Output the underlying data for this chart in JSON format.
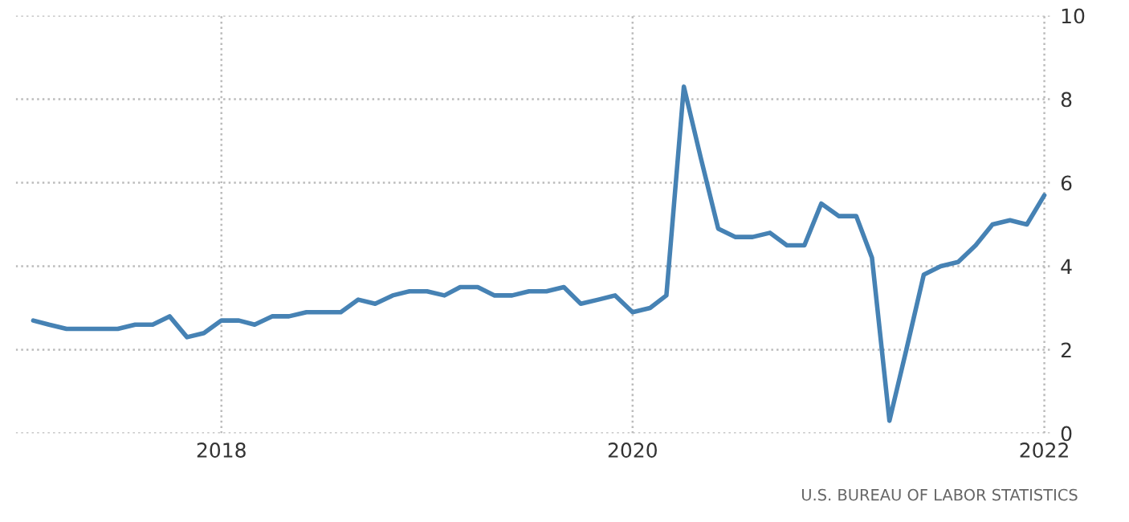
{
  "chart_data": {
    "type": "line",
    "x": [
      "2017-02",
      "2017-03",
      "2017-04",
      "2017-05",
      "2017-06",
      "2017-07",
      "2017-08",
      "2017-09",
      "2017-10",
      "2017-11",
      "2017-12",
      "2018-01",
      "2018-02",
      "2018-03",
      "2018-04",
      "2018-05",
      "2018-06",
      "2018-07",
      "2018-08",
      "2018-09",
      "2018-10",
      "2018-11",
      "2018-12",
      "2019-01",
      "2019-02",
      "2019-03",
      "2019-04",
      "2019-05",
      "2019-06",
      "2019-07",
      "2019-08",
      "2019-09",
      "2019-10",
      "2019-11",
      "2019-12",
      "2020-01",
      "2020-02",
      "2020-03",
      "2020-04",
      "2020-05",
      "2020-06",
      "2020-07",
      "2020-08",
      "2020-09",
      "2020-10",
      "2020-11",
      "2020-12",
      "2021-01",
      "2021-02",
      "2021-03",
      "2021-04",
      "2021-05",
      "2021-06",
      "2021-07",
      "2021-08",
      "2021-09",
      "2021-10",
      "2021-11",
      "2021-12",
      "2022-01"
    ],
    "series": [
      {
        "color": "#4682b4",
        "values": [
          2.7,
          2.6,
          2.5,
          2.5,
          2.5,
          2.5,
          2.6,
          2.6,
          2.8,
          2.3,
          2.4,
          2.7,
          2.7,
          2.6,
          2.8,
          2.8,
          2.9,
          2.9,
          2.9,
          3.2,
          3.1,
          3.3,
          3.4,
          3.4,
          3.3,
          3.5,
          3.5,
          3.3,
          3.3,
          3.4,
          3.4,
          3.5,
          3.1,
          3.2,
          3.3,
          2.9,
          3.0,
          3.3,
          8.3,
          6.6,
          4.9,
          4.7,
          4.7,
          4.8,
          4.5,
          4.5,
          5.5,
          5.2,
          5.2,
          4.2,
          0.3,
          2.0,
          3.8,
          4.0,
          4.1,
          4.5,
          5.0,
          5.1,
          5.0,
          5.7
        ]
      }
    ],
    "xlim": [
      "2017-01",
      "2022-01-15"
    ],
    "xticks": [
      {
        "value": "2018",
        "label": "2018"
      },
      {
        "value": "2020",
        "label": "2020"
      },
      {
        "value": "2022",
        "label": "2022"
      }
    ],
    "ylim": [
      0,
      10
    ],
    "yticks": [
      0,
      2,
      4,
      6,
      8,
      10
    ],
    "grid": true,
    "line_style": "solid",
    "marker": "none",
    "annotations": [
      "U.S. BUREAU OF LABOR STATISTICS"
    ]
  }
}
